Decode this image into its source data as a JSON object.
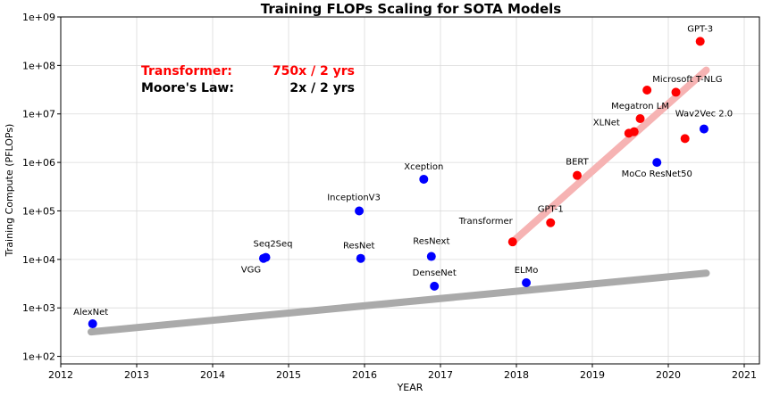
{
  "chart_data": {
    "type": "scatter",
    "title": "Training FLOPs Scaling for SOTA Models",
    "xlabel": "YEAR",
    "ylabel": "Training Compute (PFLOPs)",
    "xlim": [
      2012,
      2021.2
    ],
    "ylim": [
      70,
      1000000000
    ],
    "yscale": "log",
    "grid": true,
    "x_ticks": [
      2012,
      2013,
      2014,
      2015,
      2016,
      2017,
      2018,
      2019,
      2020,
      2021
    ],
    "x_tick_labels": [
      "2012",
      "2013",
      "2014",
      "2015",
      "2016",
      "2017",
      "2018",
      "2019",
      "2020",
      "2021"
    ],
    "y_ticks": [
      100,
      1000,
      10000,
      100000,
      1000000,
      10000000,
      100000000,
      1000000000
    ],
    "y_tick_labels": [
      "1e+02",
      "1e+03",
      "1e+04",
      "1e+05",
      "1e+06",
      "1e+07",
      "1e+08",
      "1e+09"
    ],
    "colors": {
      "cnn_points": "#0000ff",
      "transformer_points": "#ff0000",
      "transformer_trend": "#f6b3b3",
      "moore_trend": "#aaaaaa",
      "transformer_text": "#ff0000",
      "moore_text": "#000000"
    },
    "annotations": [
      {
        "name": "transformer",
        "label": "Transformer:",
        "value": "750x / 2 yrs",
        "color": "#ff0000"
      },
      {
        "name": "moore",
        "label": "Moore's Law:",
        "value": "2x / 2 yrs",
        "color": "#000000"
      }
    ],
    "trend_lines": [
      {
        "name": "Moore's Law",
        "x": [
          2012.4,
          2020.5
        ],
        "y": [
          320,
          5200
        ]
      },
      {
        "name": "Transformer",
        "x": [
          2017.95,
          2020.5
        ],
        "y": [
          23000,
          80000000
        ]
      }
    ],
    "series": [
      {
        "group": "cnn",
        "points": [
          {
            "label": "AlexNet",
            "x": 2012.42,
            "y": 470
          },
          {
            "label": "Seq2Seq",
            "x": 2014.7,
            "y": 11000
          },
          {
            "label": "VGG",
            "x": 2014.67,
            "y": 10500
          },
          {
            "label": "InceptionV3",
            "x": 2015.93,
            "y": 100000
          },
          {
            "label": "ResNet",
            "x": 2015.95,
            "y": 10500
          },
          {
            "label": "Xception",
            "x": 2016.78,
            "y": 450000
          },
          {
            "label": "ResNext",
            "x": 2016.88,
            "y": 11500
          },
          {
            "label": "DenseNet",
            "x": 2016.92,
            "y": 2800
          },
          {
            "label": "ELMo",
            "x": 2018.13,
            "y": 3300
          },
          {
            "label": "MoCo ResNet50",
            "x": 2019.85,
            "y": 1000000
          },
          {
            "label": "Wav2Vec 2.0",
            "x": 2020.47,
            "y": 4900000
          }
        ]
      },
      {
        "group": "transformer",
        "points": [
          {
            "label": "Transformer",
            "x": 2017.95,
            "y": 23000
          },
          {
            "label": "GPT-1",
            "x": 2018.45,
            "y": 57000
          },
          {
            "label": "BERT",
            "x": 2018.8,
            "y": 540000
          },
          {
            "label": "XLNet",
            "x": 2019.48,
            "y": 4000000
          },
          {
            "label": "",
            "x": 2019.55,
            "y": 4300000
          },
          {
            "label": "Megatron LM",
            "x": 2019.63,
            "y": 8000000
          },
          {
            "label": "Microsoft T-NLG",
            "x": 2019.72,
            "y": 31000000
          },
          {
            "label": "",
            "x": 2020.1,
            "y": 28000000
          },
          {
            "label": "",
            "x": 2020.22,
            "y": 3100000
          },
          {
            "label": "GPT-3",
            "x": 2020.42,
            "y": 314000000
          }
        ]
      }
    ]
  }
}
